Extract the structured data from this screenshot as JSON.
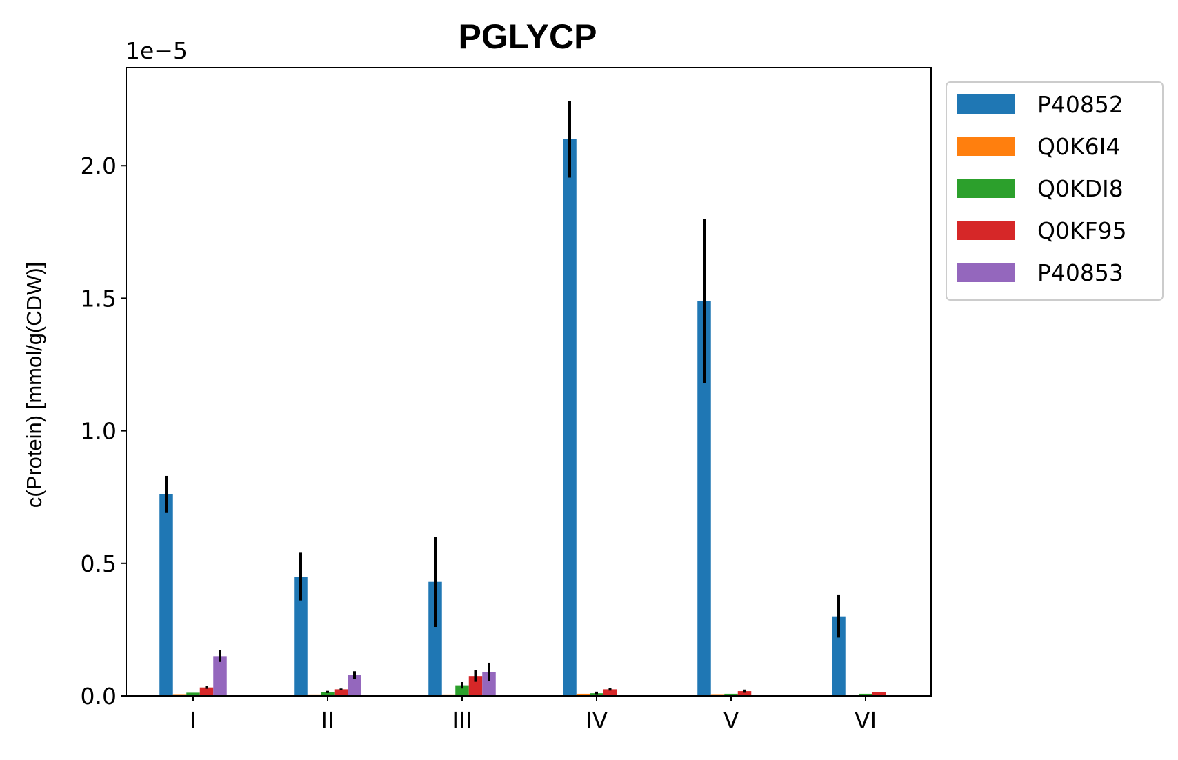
{
  "chart_data": {
    "type": "bar",
    "title": "PGLYCP",
    "xlabel": "",
    "ylabel": "c(Protein) [mmol/g(CDW)]",
    "offset_label": "1e−5",
    "scale_multiplier": 1e-05,
    "categories": [
      "I",
      "II",
      "III",
      "IV",
      "V",
      "VI"
    ],
    "ylim": [
      0,
      2.37
    ],
    "yticks": [
      0.0,
      0.5,
      1.0,
      1.5,
      2.0
    ],
    "ytick_labels": [
      "0.0",
      "0.5",
      "1.0",
      "1.5",
      "2.0"
    ],
    "grid": false,
    "legend_position": "outside-top-right",
    "series": [
      {
        "name": "P40852",
        "color": "#1f77b4",
        "values": [
          0.76,
          0.45,
          0.43,
          2.1,
          1.49,
          0.3
        ],
        "errors": [
          0.07,
          0.09,
          0.17,
          0.145,
          0.31,
          0.08
        ]
      },
      {
        "name": "Q0K6I4",
        "color": "#ff7f0e",
        "values": [
          0.004,
          0.003,
          0.003,
          0.008,
          0.004,
          0.002
        ],
        "errors": [
          0,
          0,
          0,
          0,
          0,
          0
        ]
      },
      {
        "name": "Q0KDI8",
        "color": "#2ca02c",
        "values": [
          0.012,
          0.015,
          0.04,
          0.01,
          0.008,
          0.008
        ],
        "errors": [
          0,
          0.004,
          0.012,
          0.006,
          0,
          0
        ]
      },
      {
        "name": "Q0KF95",
        "color": "#d62728",
        "values": [
          0.032,
          0.025,
          0.075,
          0.025,
          0.018,
          0.015
        ],
        "errors": [
          0.005,
          0.003,
          0.022,
          0.005,
          0.006,
          0
        ]
      },
      {
        "name": "P40853",
        "color": "#9467bd",
        "values": [
          0.15,
          0.078,
          0.09,
          0,
          0,
          0
        ],
        "errors": [
          0.022,
          0.015,
          0.035,
          0,
          0,
          0
        ]
      }
    ]
  }
}
